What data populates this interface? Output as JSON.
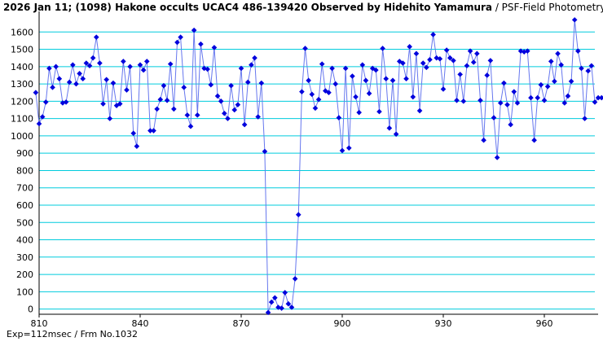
{
  "title": {
    "main": "2026 Jan 11; (1098) Hakone occults UCAC4 486-139420 Observed by Hidehito Yamamura",
    "sub": " / PSF-Field Photometry /"
  },
  "footer": "Exp=112msec / Frm No.1032",
  "colors": {
    "grid": "#00ccdd",
    "series": "#0000dd",
    "axis": "#000000"
  },
  "chart_data": {
    "type": "line",
    "title": "2026 Jan 11; (1098) Hakone occults UCAC4 486-139420 Observed by Hidehito Yamamura / PSF-Field Photometry /",
    "xlabel": "",
    "ylabel": "",
    "xlim": [
      810,
      975
    ],
    "ylim": [
      -30,
      1700
    ],
    "xticks": [
      810,
      840,
      870,
      900,
      930,
      960
    ],
    "yticks": [
      0,
      100,
      200,
      300,
      400,
      500,
      600,
      700,
      800,
      900,
      1000,
      1100,
      1200,
      1300,
      1400,
      1500,
      1600
    ],
    "grid": true,
    "markers": "diamond",
    "series": [
      {
        "x0": 809,
        "values": [
          1250,
          1070,
          1110,
          1195,
          1390,
          1280,
          1400,
          1330,
          1190,
          1195,
          1310,
          1410,
          1300,
          1360,
          1330,
          1420,
          1405,
          1450,
          1570,
          1420,
          1185,
          1325,
          1100,
          1305,
          1175,
          1185,
          1430,
          1265,
          1400,
          1015,
          940,
          1410,
          1380,
          1430,
          1030,
          1030,
          1155,
          1210,
          1290,
          1205,
          1415,
          1155,
          1540,
          1570,
          1280,
          1120,
          1055,
          1610,
          1120,
          1530,
          1390,
          1385,
          1295,
          1510,
          1230,
          1200,
          1130,
          1100,
          1290,
          1150,
          1180,
          1390,
          1065,
          1310,
          1410,
          1450,
          1110,
          1305,
          910,
          -20,
          40,
          65,
          10,
          5,
          95,
          30,
          10,
          175,
          545,
          1255,
          1505,
          1320,
          1240,
          1160,
          1210,
          1415,
          1260,
          1250,
          1390,
          1300,
          1105,
          915,
          1390,
          930,
          1345,
          1225,
          1135,
          1410,
          1320,
          1245,
          1390,
          1380,
          1140,
          1505,
          1330,
          1045,
          1320,
          1010,
          1430,
          1420,
          1330,
          1515,
          1225,
          1475,
          1145,
          1420,
          1395,
          1440,
          1585,
          1450,
          1445,
          1270,
          1495,
          1450,
          1435,
          1205,
          1355,
          1200,
          1405,
          1490,
          1425,
          1475,
          1205,
          975,
          1350,
          1435,
          1105,
          875,
          1190,
          1305,
          1180,
          1065,
          1255,
          1190,
          1490,
          1485,
          1490,
          1220,
          975,
          1220,
          1295,
          1205,
          1285,
          1430,
          1315,
          1475,
          1410,
          1190,
          1230,
          1315,
          1670,
          1490,
          1390,
          1100,
          1375,
          1405,
          1195,
          1220,
          1220,
          1220
        ]
      }
    ]
  }
}
